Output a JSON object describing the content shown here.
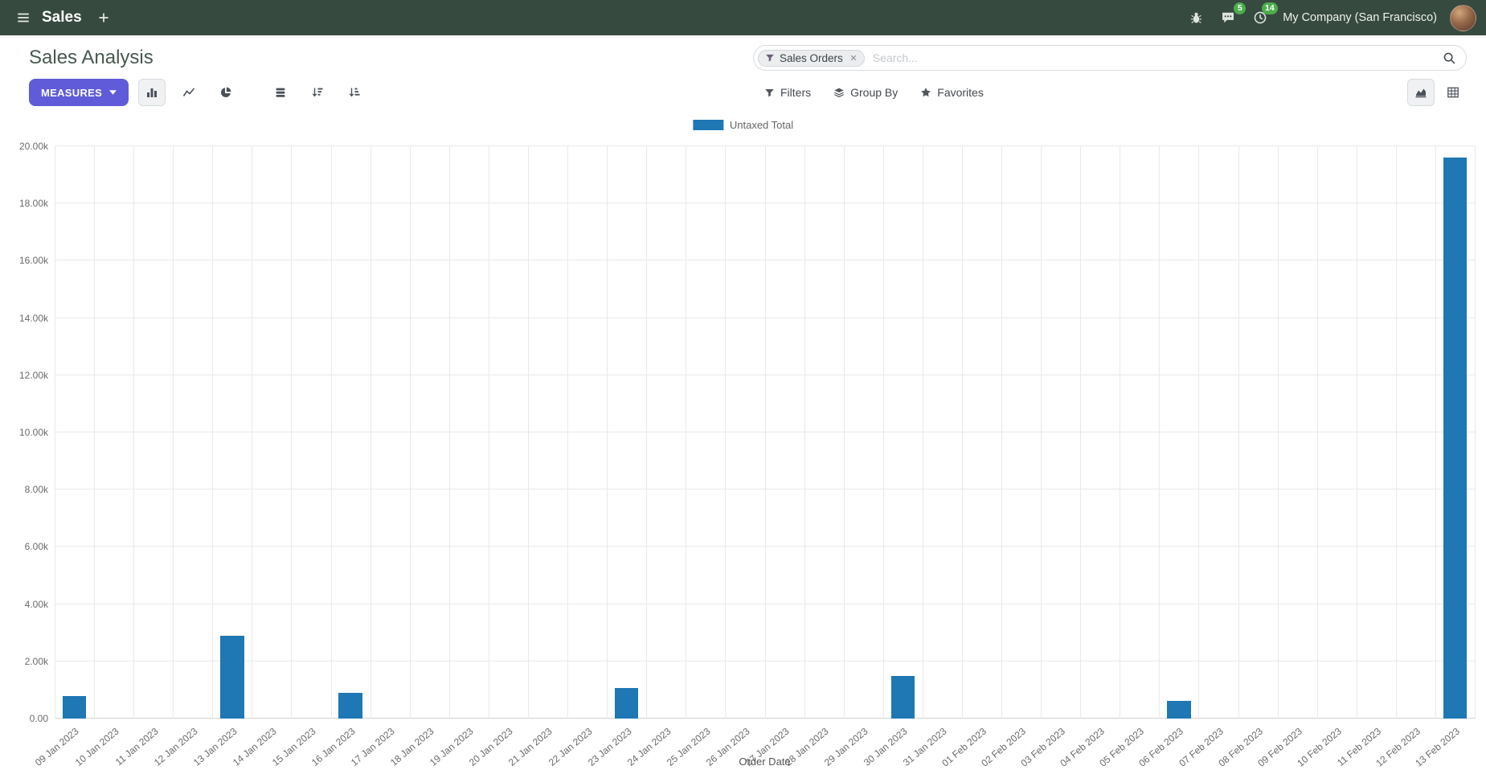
{
  "navbar": {
    "app_name": "Sales",
    "company": "My Company (San Francisco)",
    "message_badge": "5",
    "activity_badge": "14"
  },
  "control_panel": {
    "title": "Sales Analysis",
    "search": {
      "facet_label": "Sales Orders",
      "placeholder": "Search..."
    },
    "measures_label": "MEASURES",
    "filters_label": "Filters",
    "group_by_label": "Group By",
    "favorites_label": "Favorites"
  },
  "chart_data": {
    "type": "bar",
    "title": "Sales Analysis",
    "xlabel": "Order Date",
    "ylabel": "",
    "ylim": [
      0,
      20000
    ],
    "ytick_step": 2000,
    "ytick_labels": [
      "0.00",
      "2.00k",
      "4.00k",
      "6.00k",
      "8.00k",
      "10.00k",
      "12.00k",
      "14.00k",
      "16.00k",
      "18.00k",
      "20.00k"
    ],
    "grid": true,
    "legend_position": "top",
    "categories": [
      "09 Jan 2023",
      "10 Jan 2023",
      "11 Jan 2023",
      "12 Jan 2023",
      "13 Jan 2023",
      "14 Jan 2023",
      "15 Jan 2023",
      "16 Jan 2023",
      "17 Jan 2023",
      "18 Jan 2023",
      "19 Jan 2023",
      "20 Jan 2023",
      "21 Jan 2023",
      "22 Jan 2023",
      "23 Jan 2023",
      "24 Jan 2023",
      "25 Jan 2023",
      "26 Jan 2023",
      "27 Jan 2023",
      "28 Jan 2023",
      "29 Jan 2023",
      "30 Jan 2023",
      "31 Jan 2023",
      "01 Feb 2023",
      "02 Feb 2023",
      "03 Feb 2023",
      "04 Feb 2023",
      "05 Feb 2023",
      "06 Feb 2023",
      "07 Feb 2023",
      "08 Feb 2023",
      "09 Feb 2023",
      "10 Feb 2023",
      "11 Feb 2023",
      "12 Feb 2023",
      "13 Feb 2023"
    ],
    "series": [
      {
        "name": "Untaxed Total",
        "color": "#1f77b4",
        "values": [
          780,
          0,
          0,
          0,
          2900,
          0,
          0,
          910,
          0,
          0,
          0,
          0,
          0,
          0,
          1080,
          0,
          0,
          0,
          0,
          0,
          0,
          1490,
          0,
          0,
          0,
          0,
          0,
          0,
          610,
          0,
          0,
          0,
          0,
          0,
          0,
          19600
        ]
      }
    ]
  }
}
